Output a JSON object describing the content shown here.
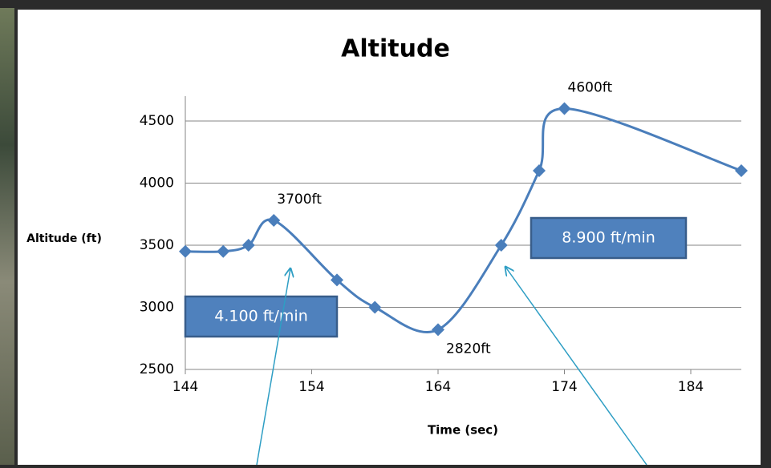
{
  "chart_data": {
    "type": "line",
    "title": "Altitude",
    "x_label": "Time (sec)",
    "y_label": "Altitude (ft)",
    "x": [
      144,
      147,
      149,
      151,
      156,
      159,
      164,
      169,
      172,
      174,
      188
    ],
    "series": [
      {
        "name": "Altitude",
        "color": "#4a7ebb",
        "smooth": true,
        "values": [
          3450,
          3450,
          3500,
          3700,
          3220,
          3000,
          2820,
          3500,
          4100,
          4600,
          4100
        ],
        "value_labels": [
          null,
          null,
          null,
          "3700ft",
          null,
          null,
          "2820ft",
          null,
          null,
          "4600ft",
          null
        ]
      }
    ],
    "xlim": [
      144,
      188
    ],
    "xticks": [
      144,
      154,
      164,
      174,
      184
    ],
    "ylim": [
      2500,
      4700
    ],
    "yticks": [
      2500,
      3000,
      3500,
      4000,
      4500
    ],
    "grid": true,
    "annotations": [
      "4.100 ft/min",
      "8.900 ft/min"
    ]
  }
}
